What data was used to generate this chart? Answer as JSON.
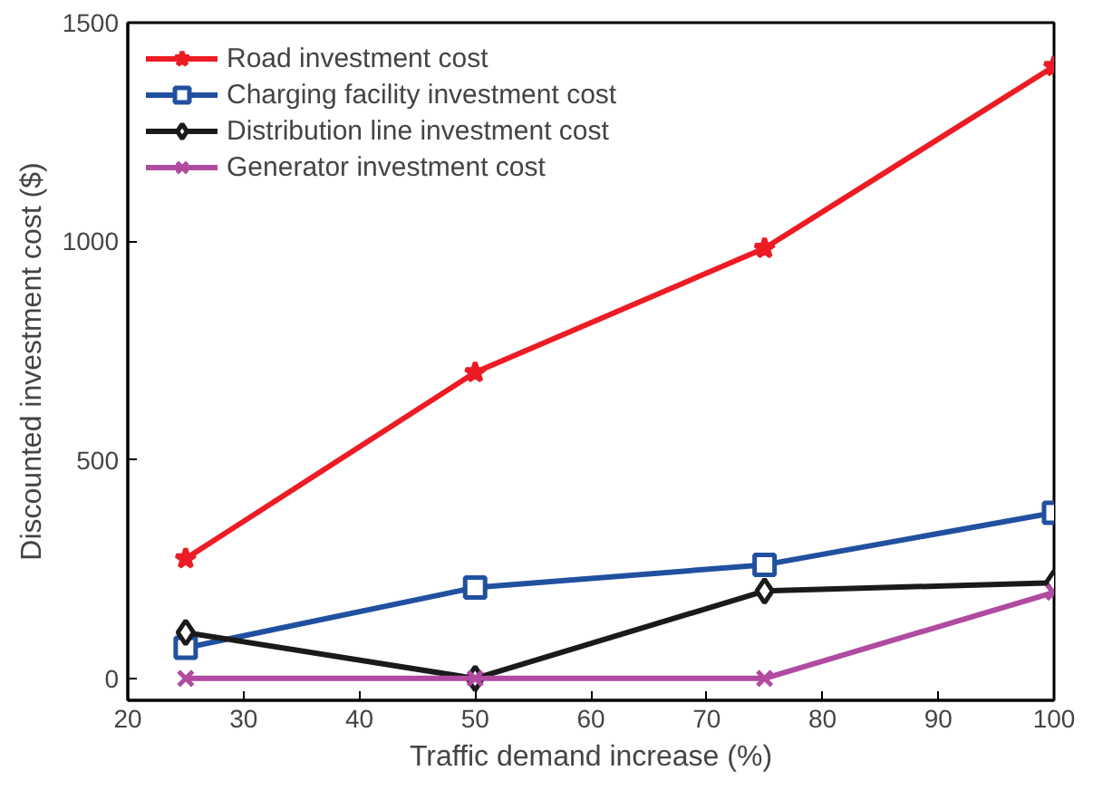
{
  "chart_data": {
    "type": "line",
    "xlabel": "Traffic demand increase (%)",
    "ylabel": "Discounted investment cost ($)",
    "x": [
      25,
      50,
      75,
      100
    ],
    "series": [
      {
        "name": "Road investment cost",
        "color": "#ed1c24",
        "marker": "star",
        "values": [
          274,
          700,
          984,
          1400
        ]
      },
      {
        "name": "Charging facility investment cost",
        "color": "#2150a0",
        "marker": "square",
        "values": [
          70,
          208,
          260,
          379
        ]
      },
      {
        "name": "Distribution line investment cost",
        "color": "#1a1a1a",
        "marker": "diamond",
        "values": [
          105,
          0,
          200,
          219
        ]
      },
      {
        "name": "Generator investment cost",
        "color": "#b04ba0",
        "marker": "cross",
        "values": [
          0,
          0,
          0,
          197
        ]
      }
    ],
    "xlim": [
      20,
      100
    ],
    "xticks": [
      20,
      30,
      40,
      50,
      60,
      70,
      80,
      90,
      100
    ],
    "ylim": [
      -50,
      1500
    ],
    "yticks": [
      0,
      500,
      1000,
      1500
    ],
    "grid": false,
    "legend": "top left",
    "line_style": "solid"
  }
}
